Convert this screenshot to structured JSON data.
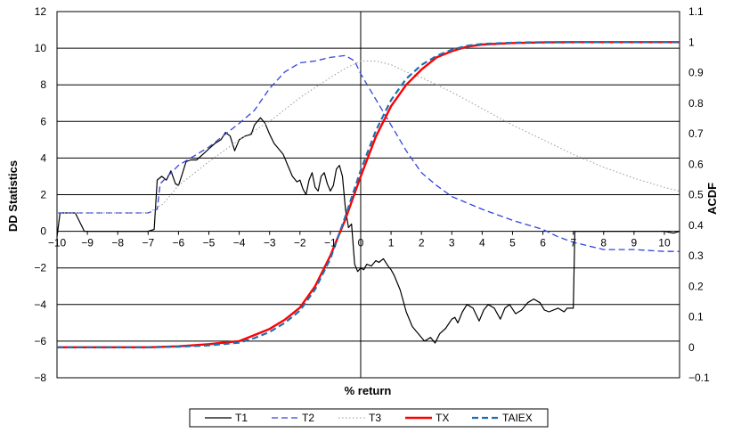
{
  "chart_data": {
    "type": "line",
    "title": "",
    "xlabel": "% return",
    "ylabel_left": "DD Statistics",
    "ylabel_right": "ACDF",
    "xlim": [
      -10,
      10.5
    ],
    "ylim_left": [
      -8,
      12
    ],
    "ylim_right": [
      -0.1,
      1.1
    ],
    "x_ticks": [
      -10,
      -9,
      -8,
      -7,
      -6,
      -5,
      -4,
      -3,
      -2,
      -1,
      0,
      1,
      2,
      3,
      4,
      5,
      6,
      7,
      8,
      9,
      10
    ],
    "y_left_ticks": [
      -8,
      -6,
      -4,
      -2,
      0,
      2,
      4,
      6,
      8,
      10,
      12
    ],
    "y_right_ticks": [
      -0.1,
      0,
      0.1,
      0.2,
      0.3,
      0.4,
      0.5,
      0.6,
      0.7,
      0.8,
      0.9,
      1,
      1.1
    ],
    "y_right_tick_labels": [
      "-0.1",
      "0",
      "0.1",
      "0.2",
      "0.3",
      "0.4",
      "0.5",
      "0.6",
      "0.7",
      "0.8",
      "0.9",
      "1",
      "1.1"
    ],
    "grid": "horizontal",
    "legend_position": "bottom",
    "series": [
      {
        "name": "T1",
        "axis": "left",
        "color": "#000000",
        "style": "solid",
        "points": [
          [
            -10,
            -0.3
          ],
          [
            -9.9,
            1.0
          ],
          [
            -9.4,
            1.0
          ],
          [
            -9.1,
            0.0
          ],
          [
            -8.0,
            0.0
          ],
          [
            -7.0,
            0.0
          ],
          [
            -6.8,
            0.1
          ],
          [
            -6.7,
            2.8
          ],
          [
            -6.55,
            3.0
          ],
          [
            -6.4,
            2.8
          ],
          [
            -6.25,
            3.3
          ],
          [
            -6.1,
            2.6
          ],
          [
            -6.0,
            2.5
          ],
          [
            -5.9,
            3.0
          ],
          [
            -5.75,
            3.8
          ],
          [
            -5.6,
            3.9
          ],
          [
            -5.4,
            3.9
          ],
          [
            -5.2,
            4.2
          ],
          [
            -5.0,
            4.5
          ],
          [
            -4.8,
            4.8
          ],
          [
            -4.6,
            5.0
          ],
          [
            -4.45,
            5.4
          ],
          [
            -4.3,
            5.2
          ],
          [
            -4.15,
            4.4
          ],
          [
            -4.0,
            5.0
          ],
          [
            -3.8,
            5.2
          ],
          [
            -3.6,
            5.3
          ],
          [
            -3.5,
            5.8
          ],
          [
            -3.4,
            6.0
          ],
          [
            -3.3,
            6.2
          ],
          [
            -3.15,
            5.9
          ],
          [
            -3.0,
            5.3
          ],
          [
            -2.85,
            4.8
          ],
          [
            -2.7,
            4.5
          ],
          [
            -2.55,
            4.2
          ],
          [
            -2.4,
            3.6
          ],
          [
            -2.25,
            3.0
          ],
          [
            -2.1,
            2.7
          ],
          [
            -2.0,
            2.8
          ],
          [
            -1.9,
            2.3
          ],
          [
            -1.8,
            2.0
          ],
          [
            -1.7,
            2.8
          ],
          [
            -1.6,
            3.2
          ],
          [
            -1.5,
            2.4
          ],
          [
            -1.4,
            2.2
          ],
          [
            -1.3,
            3.0
          ],
          [
            -1.2,
            3.2
          ],
          [
            -1.1,
            2.6
          ],
          [
            -1.0,
            2.2
          ],
          [
            -0.9,
            2.5
          ],
          [
            -0.8,
            3.4
          ],
          [
            -0.7,
            3.6
          ],
          [
            -0.6,
            3.0
          ],
          [
            -0.5,
            1.2
          ],
          [
            -0.4,
            0.2
          ],
          [
            -0.3,
            0.4
          ],
          [
            -0.2,
            -1.8
          ],
          [
            -0.1,
            -2.2
          ],
          [
            0.0,
            -2.0
          ],
          [
            0.1,
            -2.1
          ],
          [
            0.2,
            -1.8
          ],
          [
            0.35,
            -1.9
          ],
          [
            0.5,
            -1.6
          ],
          [
            0.6,
            -1.7
          ],
          [
            0.75,
            -1.5
          ],
          [
            0.9,
            -1.9
          ],
          [
            1.0,
            -2.1
          ],
          [
            1.1,
            -2.4
          ],
          [
            1.3,
            -3.2
          ],
          [
            1.5,
            -4.4
          ],
          [
            1.7,
            -5.2
          ],
          [
            1.9,
            -5.6
          ],
          [
            2.1,
            -6.0
          ],
          [
            2.3,
            -5.8
          ],
          [
            2.45,
            -6.1
          ],
          [
            2.6,
            -5.6
          ],
          [
            2.8,
            -5.3
          ],
          [
            3.0,
            -4.8
          ],
          [
            3.1,
            -4.7
          ],
          [
            3.2,
            -5.0
          ],
          [
            3.35,
            -4.4
          ],
          [
            3.5,
            -4.0
          ],
          [
            3.7,
            -4.2
          ],
          [
            3.9,
            -4.9
          ],
          [
            4.05,
            -4.3
          ],
          [
            4.2,
            -4.0
          ],
          [
            4.4,
            -4.2
          ],
          [
            4.6,
            -4.8
          ],
          [
            4.75,
            -4.2
          ],
          [
            4.9,
            -4.0
          ],
          [
            5.1,
            -4.5
          ],
          [
            5.3,
            -4.3
          ],
          [
            5.5,
            -3.9
          ],
          [
            5.7,
            -3.7
          ],
          [
            5.9,
            -3.9
          ],
          [
            6.05,
            -4.3
          ],
          [
            6.2,
            -4.4
          ],
          [
            6.5,
            -4.2
          ],
          [
            6.7,
            -4.4
          ],
          [
            6.8,
            -4.2
          ],
          [
            7.0,
            -4.2
          ],
          [
            7.05,
            0.0
          ],
          [
            7.3,
            0.0
          ],
          [
            10.0,
            0.0
          ],
          [
            10.3,
            -0.1
          ],
          [
            10.5,
            0.0
          ]
        ]
      },
      {
        "name": "T2",
        "axis": "left",
        "color": "#3344dd",
        "style": "dashed",
        "points": [
          [
            -10,
            1.0
          ],
          [
            -9,
            1.0
          ],
          [
            -8,
            1.0
          ],
          [
            -7,
            1.0
          ],
          [
            -6.7,
            1.2
          ],
          [
            -6.6,
            2.6
          ],
          [
            -6,
            3.6
          ],
          [
            -5,
            4.6
          ],
          [
            -4,
            5.9
          ],
          [
            -3.5,
            6.6
          ],
          [
            -3,
            7.8
          ],
          [
            -2.5,
            8.7
          ],
          [
            -2,
            9.2
          ],
          [
            -1.5,
            9.3
          ],
          [
            -1,
            9.5
          ],
          [
            -0.5,
            9.6
          ],
          [
            -0.2,
            9.3
          ],
          [
            0,
            8.6
          ],
          [
            0.5,
            7.2
          ],
          [
            1,
            5.8
          ],
          [
            1.5,
            4.4
          ],
          [
            2,
            3.2
          ],
          [
            2.5,
            2.5
          ],
          [
            3,
            1.9
          ],
          [
            4,
            1.2
          ],
          [
            5,
            0.6
          ],
          [
            6,
            0.1
          ],
          [
            6.5,
            -0.3
          ],
          [
            7,
            -0.6
          ],
          [
            8,
            -1.0
          ],
          [
            9,
            -1.0
          ],
          [
            10,
            -1.1
          ],
          [
            10.5,
            -1.1
          ]
        ]
      },
      {
        "name": "T3",
        "axis": "left",
        "color": "#999999",
        "style": "dotted",
        "points": [
          [
            -10,
            1.0
          ],
          [
            -8,
            1.0
          ],
          [
            -7,
            1.0
          ],
          [
            -6.5,
            1.5
          ],
          [
            -6,
            2.5
          ],
          [
            -5,
            3.8
          ],
          [
            -4,
            5.0
          ],
          [
            -3,
            6.0
          ],
          [
            -2,
            7.3
          ],
          [
            -1,
            8.4
          ],
          [
            -0.5,
            8.9
          ],
          [
            0,
            9.3
          ],
          [
            0.5,
            9.3
          ],
          [
            1,
            9.1
          ],
          [
            1.5,
            8.7
          ],
          [
            2,
            8.4
          ],
          [
            3,
            7.6
          ],
          [
            4,
            6.7
          ],
          [
            5,
            5.8
          ],
          [
            6,
            5.0
          ],
          [
            7,
            4.2
          ],
          [
            8,
            3.5
          ],
          [
            9,
            2.9
          ],
          [
            10,
            2.4
          ],
          [
            10.5,
            2.2
          ]
        ]
      },
      {
        "name": "TX",
        "axis": "right",
        "color": "#ff0000",
        "style": "solid",
        "points": [
          [
            -10,
            0.0
          ],
          [
            -8,
            0.0
          ],
          [
            -7,
            0.0
          ],
          [
            -6,
            0.003
          ],
          [
            -5,
            0.01
          ],
          [
            -4,
            0.02
          ],
          [
            -3.5,
            0.04
          ],
          [
            -3,
            0.06
          ],
          [
            -2.5,
            0.09
          ],
          [
            -2,
            0.13
          ],
          [
            -1.5,
            0.2
          ],
          [
            -1,
            0.3
          ],
          [
            -0.5,
            0.42
          ],
          [
            0,
            0.56
          ],
          [
            0.5,
            0.69
          ],
          [
            1,
            0.79
          ],
          [
            1.5,
            0.86
          ],
          [
            2,
            0.91
          ],
          [
            2.5,
            0.95
          ],
          [
            3,
            0.97
          ],
          [
            3.5,
            0.985
          ],
          [
            4,
            0.992
          ],
          [
            5,
            0.997
          ],
          [
            6,
            0.999
          ],
          [
            7,
            1.0
          ],
          [
            8,
            1.0
          ],
          [
            9,
            1.0
          ],
          [
            10,
            1.0
          ],
          [
            10.5,
            1.0
          ]
        ]
      },
      {
        "name": "TAIEX",
        "axis": "right",
        "color": "#1f6fb0",
        "style": "dashed",
        "points": [
          [
            -10,
            0.0
          ],
          [
            -8,
            0.0
          ],
          [
            -7,
            0.0
          ],
          [
            -6,
            0.002
          ],
          [
            -5,
            0.006
          ],
          [
            -4,
            0.015
          ],
          [
            -3.5,
            0.03
          ],
          [
            -3,
            0.05
          ],
          [
            -2.5,
            0.08
          ],
          [
            -2,
            0.12
          ],
          [
            -1.5,
            0.19
          ],
          [
            -1,
            0.29
          ],
          [
            -0.5,
            0.43
          ],
          [
            0,
            0.58
          ],
          [
            0.5,
            0.71
          ],
          [
            1,
            0.81
          ],
          [
            1.5,
            0.88
          ],
          [
            2,
            0.925
          ],
          [
            2.5,
            0.955
          ],
          [
            3,
            0.975
          ],
          [
            3.5,
            0.988
          ],
          [
            4,
            0.994
          ],
          [
            5,
            0.998
          ],
          [
            6,
            1.0
          ],
          [
            7,
            1.0
          ],
          [
            8,
            1.0
          ],
          [
            9,
            1.0
          ],
          [
            10,
            1.0
          ],
          [
            10.5,
            1.0
          ]
        ]
      }
    ]
  }
}
